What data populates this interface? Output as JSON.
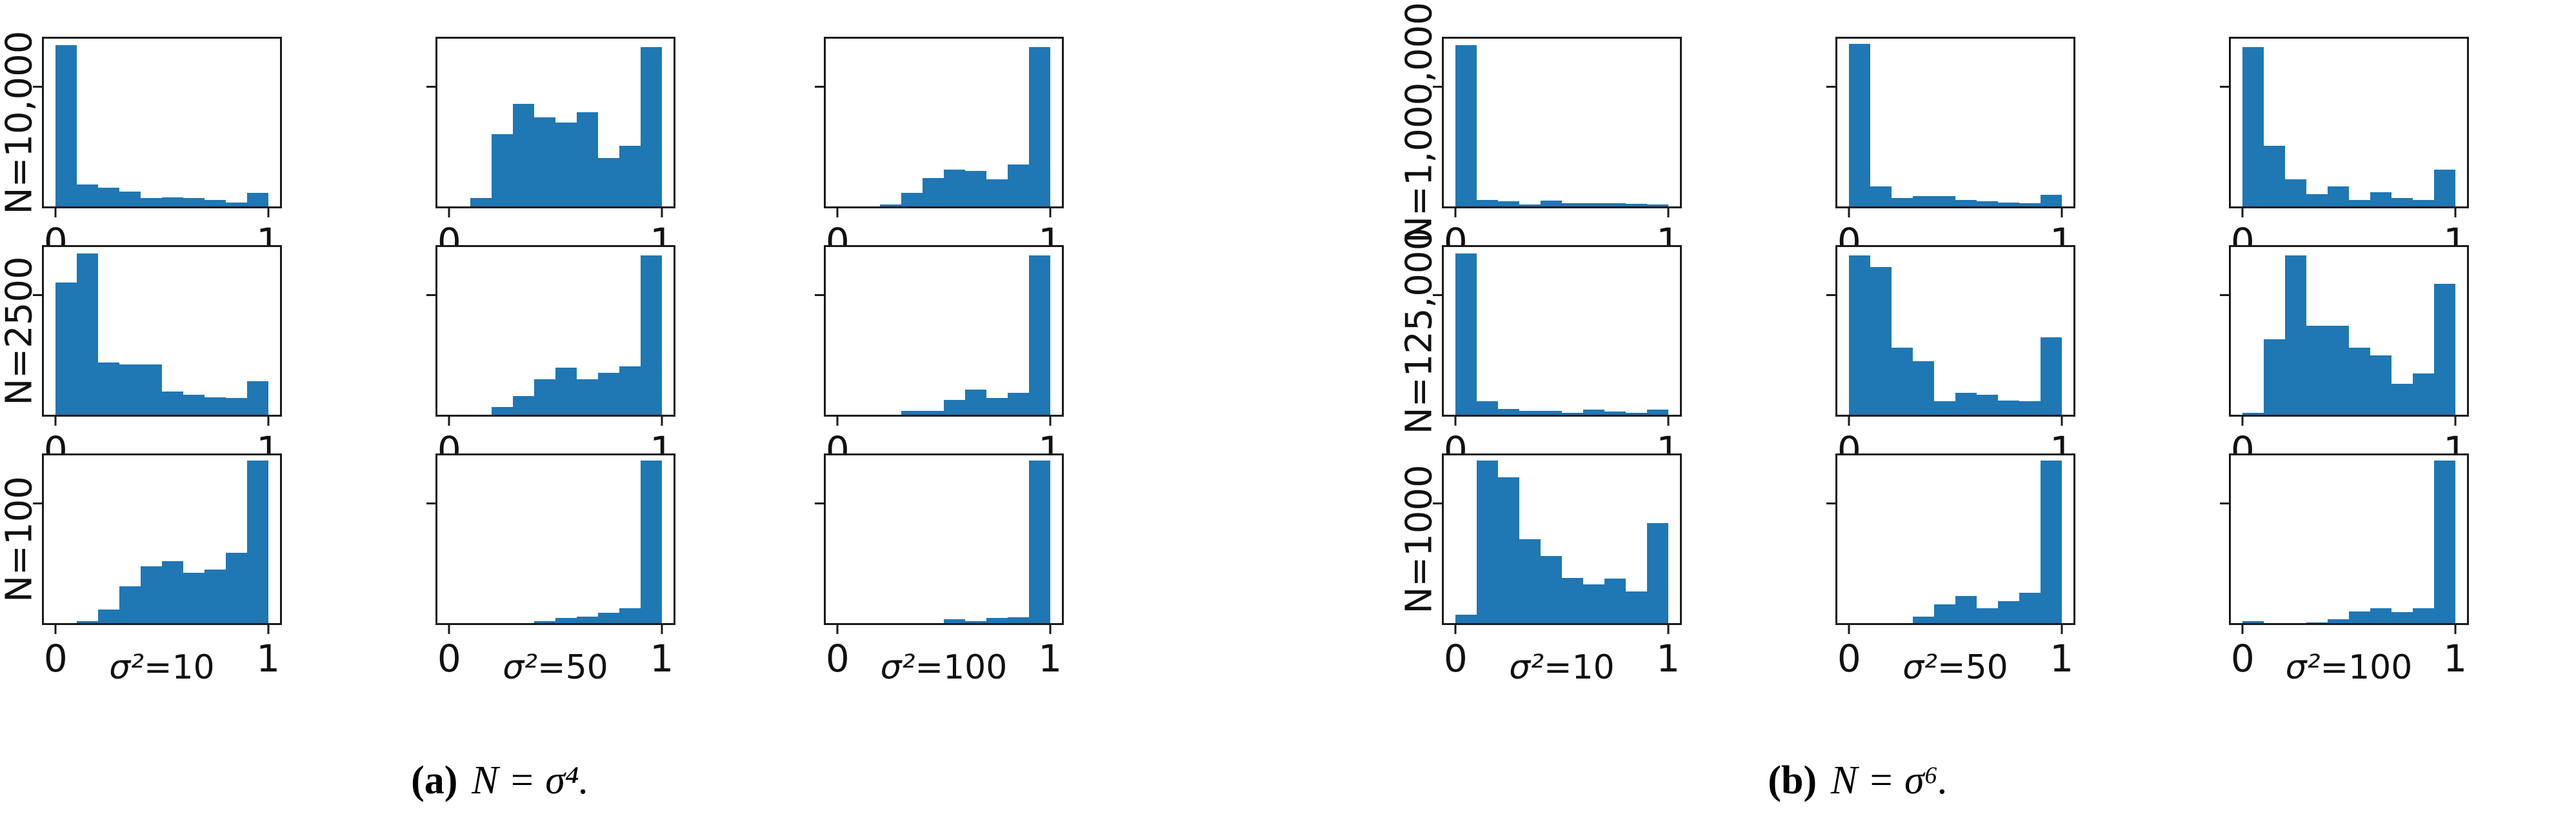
{
  "figure": {
    "bar_color": "#1f77b4",
    "axis_color": "#1a1a1a",
    "x_tick_labels": [
      "0",
      "1"
    ],
    "panels": [
      {
        "id": "a",
        "caption": {
          "prefix": "(a)",
          "formula": "N = σ⁴."
        },
        "row_labels": [
          "N=10,000",
          "N=2500",
          "N=100"
        ],
        "col_labels": [
          {
            "sigma": "σ²",
            "rest": "=10"
          },
          {
            "sigma": "σ²",
            "rest": "=50"
          },
          {
            "sigma": "σ²",
            "rest": "=100"
          }
        ]
      },
      {
        "id": "b",
        "caption": {
          "prefix": "(b)",
          "formula": "N = σ⁶."
        },
        "row_labels": [
          "N=1,000,000",
          "N=125,000",
          "N=1000"
        ],
        "col_labels": [
          {
            "sigma": "σ²",
            "rest": "=10"
          },
          {
            "sigma": "σ²",
            "rest": "=50"
          },
          {
            "sigma": "σ²",
            "rest": "=100"
          }
        ]
      }
    ]
  },
  "chart_data": [
    {
      "type": "histogram",
      "panel": "a",
      "row": "N=10,000",
      "col": "σ²=10",
      "x_range": [
        0,
        1
      ],
      "bins": 10,
      "x_ticks": [
        0,
        1
      ],
      "grid": false,
      "heights_relative": [
        0.96,
        0.13,
        0.11,
        0.09,
        0.05,
        0.055,
        0.05,
        0.04,
        0.025,
        0.08
      ]
    },
    {
      "type": "histogram",
      "panel": "a",
      "row": "N=10,000",
      "col": "σ²=50",
      "x_range": [
        0,
        1
      ],
      "bins": 10,
      "x_ticks": [
        0,
        1
      ],
      "grid": false,
      "heights_relative": [
        0,
        0.05,
        0.43,
        0.61,
        0.53,
        0.5,
        0.56,
        0.29,
        0.36,
        0.95
      ]
    },
    {
      "type": "histogram",
      "panel": "a",
      "row": "N=10,000",
      "col": "σ²=100",
      "x_range": [
        0,
        1
      ],
      "bins": 10,
      "x_ticks": [
        0,
        1
      ],
      "grid": false,
      "heights_relative": [
        0,
        0,
        0.01,
        0.08,
        0.17,
        0.22,
        0.21,
        0.16,
        0.25,
        0.95
      ]
    },
    {
      "type": "histogram",
      "panel": "a",
      "row": "N=2500",
      "col": "σ²=10",
      "x_range": [
        0,
        1
      ],
      "bins": 10,
      "x_ticks": [
        0,
        1
      ],
      "grid": false,
      "heights_relative": [
        0.79,
        0.96,
        0.31,
        0.3,
        0.3,
        0.14,
        0.12,
        0.105,
        0.1,
        0.2
      ]
    },
    {
      "type": "histogram",
      "panel": "a",
      "row": "N=2500",
      "col": "σ²=50",
      "x_range": [
        0,
        1
      ],
      "bins": 10,
      "x_ticks": [
        0,
        1
      ],
      "grid": false,
      "heights_relative": [
        0,
        0,
        0.045,
        0.11,
        0.21,
        0.28,
        0.21,
        0.25,
        0.29,
        0.95
      ]
    },
    {
      "type": "histogram",
      "panel": "a",
      "row": "N=2500",
      "col": "σ²=100",
      "x_range": [
        0,
        1
      ],
      "bins": 10,
      "x_ticks": [
        0,
        1
      ],
      "grid": false,
      "heights_relative": [
        0,
        0,
        0,
        0.025,
        0.025,
        0.09,
        0.15,
        0.1,
        0.13,
        0.95
      ]
    },
    {
      "type": "histogram",
      "panel": "a",
      "row": "N=100",
      "col": "σ²=10",
      "x_range": [
        0,
        1
      ],
      "bins": 10,
      "x_ticks": [
        0,
        1
      ],
      "grid": false,
      "heights_relative": [
        0,
        0.01,
        0.08,
        0.22,
        0.34,
        0.37,
        0.3,
        0.32,
        0.42,
        0.97
      ]
    },
    {
      "type": "histogram",
      "panel": "a",
      "row": "N=100",
      "col": "σ²=50",
      "x_range": [
        0,
        1
      ],
      "bins": 10,
      "x_ticks": [
        0,
        1
      ],
      "grid": false,
      "heights_relative": [
        0,
        0,
        0,
        0,
        0.012,
        0.03,
        0.04,
        0.06,
        0.09,
        0.97
      ]
    },
    {
      "type": "histogram",
      "panel": "a",
      "row": "N=100",
      "col": "σ²=100",
      "x_range": [
        0,
        1
      ],
      "bins": 10,
      "x_ticks": [
        0,
        1
      ],
      "grid": false,
      "heights_relative": [
        0,
        0,
        0,
        0,
        0,
        0.025,
        0.01,
        0.03,
        0.035,
        0.97
      ]
    },
    {
      "type": "histogram",
      "panel": "b",
      "row": "N=1,000,000",
      "col": "σ²=10",
      "x_range": [
        0,
        1
      ],
      "bins": 10,
      "x_ticks": [
        0,
        1
      ],
      "grid": false,
      "heights_relative": [
        0.96,
        0.04,
        0.03,
        0.01,
        0.035,
        0.02,
        0.02,
        0.02,
        0.015,
        0.01
      ]
    },
    {
      "type": "histogram",
      "panel": "b",
      "row": "N=1,000,000",
      "col": "σ²=50",
      "x_range": [
        0,
        1
      ],
      "bins": 10,
      "x_ticks": [
        0,
        1
      ],
      "grid": false,
      "heights_relative": [
        0.97,
        0.12,
        0.05,
        0.06,
        0.06,
        0.04,
        0.03,
        0.025,
        0.02,
        0.07
      ]
    },
    {
      "type": "histogram",
      "panel": "b",
      "row": "N=1,000,000",
      "col": "σ²=100",
      "x_range": [
        0,
        1
      ],
      "bins": 10,
      "x_ticks": [
        0,
        1
      ],
      "grid": false,
      "heights_relative": [
        0.95,
        0.36,
        0.16,
        0.075,
        0.12,
        0.04,
        0.085,
        0.05,
        0.04,
        0.22
      ]
    },
    {
      "type": "histogram",
      "panel": "b",
      "row": "N=125,000",
      "col": "σ²=10",
      "x_range": [
        0,
        1
      ],
      "bins": 10,
      "x_ticks": [
        0,
        1
      ],
      "grid": false,
      "heights_relative": [
        0.96,
        0.08,
        0.035,
        0.025,
        0.025,
        0.01,
        0.03,
        0.02,
        0.01,
        0.03
      ]
    },
    {
      "type": "histogram",
      "panel": "b",
      "row": "N=125,000",
      "col": "σ²=50",
      "x_range": [
        0,
        1
      ],
      "bins": 10,
      "x_ticks": [
        0,
        1
      ],
      "grid": false,
      "heights_relative": [
        0.95,
        0.88,
        0.4,
        0.32,
        0.08,
        0.13,
        0.12,
        0.085,
        0.08,
        0.46
      ]
    },
    {
      "type": "histogram",
      "panel": "b",
      "row": "N=125,000",
      "col": "σ²=100",
      "x_range": [
        0,
        1
      ],
      "bins": 10,
      "x_ticks": [
        0,
        1
      ],
      "grid": false,
      "heights_relative": [
        0.01,
        0.45,
        0.95,
        0.53,
        0.53,
        0.4,
        0.355,
        0.185,
        0.245,
        0.78
      ]
    },
    {
      "type": "histogram",
      "panel": "b",
      "row": "N=1000",
      "col": "σ²=10",
      "x_range": [
        0,
        1
      ],
      "bins": 10,
      "x_ticks": [
        0,
        1
      ],
      "grid": false,
      "heights_relative": [
        0.05,
        0.97,
        0.87,
        0.5,
        0.4,
        0.27,
        0.23,
        0.265,
        0.19,
        0.595
      ]
    },
    {
      "type": "histogram",
      "panel": "b",
      "row": "N=1000",
      "col": "σ²=50",
      "x_range": [
        0,
        1
      ],
      "bins": 10,
      "x_ticks": [
        0,
        1
      ],
      "grid": false,
      "heights_relative": [
        0,
        0,
        0,
        0.04,
        0.11,
        0.16,
        0.09,
        0.13,
        0.18,
        0.97
      ]
    },
    {
      "type": "histogram",
      "panel": "b",
      "row": "N=1000",
      "col": "σ²=100",
      "x_range": [
        0,
        1
      ],
      "bins": 10,
      "x_ticks": [
        0,
        1
      ],
      "grid": false,
      "heights_relative": [
        0.01,
        0,
        0,
        0.005,
        0.025,
        0.07,
        0.09,
        0.065,
        0.09,
        0.97
      ]
    }
  ]
}
